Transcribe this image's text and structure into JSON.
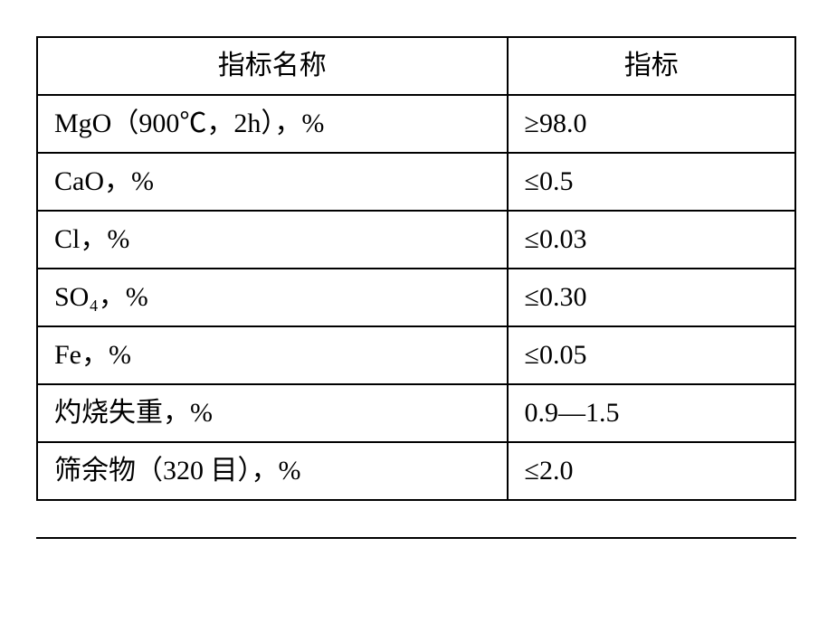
{
  "table": {
    "type": "table",
    "columns": [
      "指标名称",
      "指标"
    ],
    "rows": [
      [
        "MgO（900℃，2h），%",
        "≥98.0"
      ],
      [
        "CaO，%",
        "≤0.5"
      ],
      [
        "Cl，%",
        "≤0.03"
      ],
      [
        "SO₄，%",
        "≤0.30"
      ],
      [
        "Fe，%",
        "≤0.05"
      ],
      [
        "灼烧失重，%",
        "0.9—1.5"
      ],
      [
        "筛余物（320 目），%",
        "≤2.0"
      ]
    ],
    "border_color": "#000000",
    "background_color": "#ffffff",
    "text_color": "#000000",
    "header_fontsize": 30,
    "cell_fontsize": 30,
    "col_widths_pct": [
      62,
      38
    ],
    "header_align": "center",
    "cell_align": "left"
  }
}
